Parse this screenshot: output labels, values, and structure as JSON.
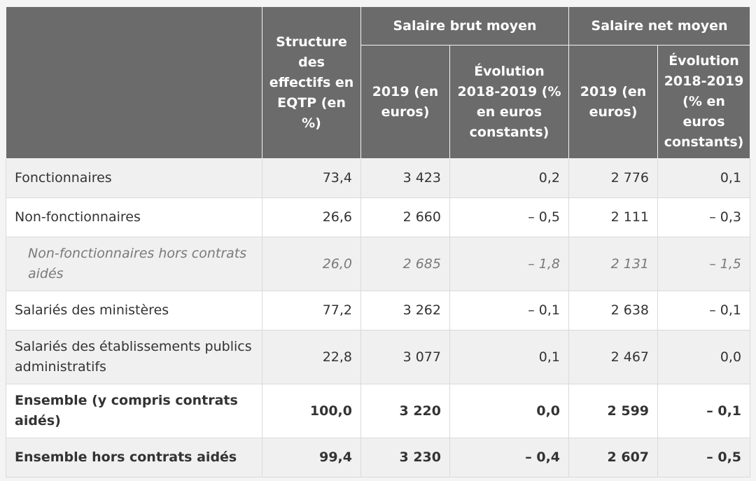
{
  "table": {
    "headers": {
      "structure": "Structure des effectifs en EQTP (en %)",
      "brut_group": "Salaire brut moyen",
      "net_group": "Salaire net moyen",
      "brut_2019": "2019 (en euros)",
      "brut_evol": "Évolution 2018-2019 (% en euros constants)",
      "net_2019": "2019 (en euros)",
      "net_evol": "Évolution 2018-2019 (% en euros constants)"
    },
    "rows": [
      {
        "label": "Fonctionnaires",
        "structure": "73,4",
        "brut_2019": "3 423",
        "brut_evol": "0,2",
        "net_2019": "2 776",
        "net_evol": "0,1"
      },
      {
        "label": "Non-fonctionnaires",
        "structure": "26,6",
        "brut_2019": "2 660",
        "brut_evol": "– 0,5",
        "net_2019": "2 111",
        "net_evol": "– 0,3"
      },
      {
        "label": "Non-fonctionnaires hors contrats aidés",
        "structure": "26,0",
        "brut_2019": "2 685",
        "brut_evol": "– 1,8",
        "net_2019": "2 131",
        "net_evol": "– 1,5"
      },
      {
        "label": "Salariés des ministères",
        "structure": "77,2",
        "brut_2019": "3 262",
        "brut_evol": "– 0,1",
        "net_2019": "2 638",
        "net_evol": "– 0,1"
      },
      {
        "label": "Salariés des établissements publics administratifs",
        "structure": "22,8",
        "brut_2019": "3 077",
        "brut_evol": "0,1",
        "net_2019": "2 467",
        "net_evol": "0,0"
      },
      {
        "label": "Ensemble (y compris contrats aidés)",
        "structure": "100,0",
        "brut_2019": "3 220",
        "brut_evol": "0,0",
        "net_2019": "2 599",
        "net_evol": "– 0,1"
      },
      {
        "label": "Ensemble hors contrats aidés",
        "structure": "99,4",
        "brut_2019": "3 230",
        "brut_evol": "– 0,4",
        "net_2019": "2 607",
        "net_evol": "– 0,5"
      }
    ]
  }
}
